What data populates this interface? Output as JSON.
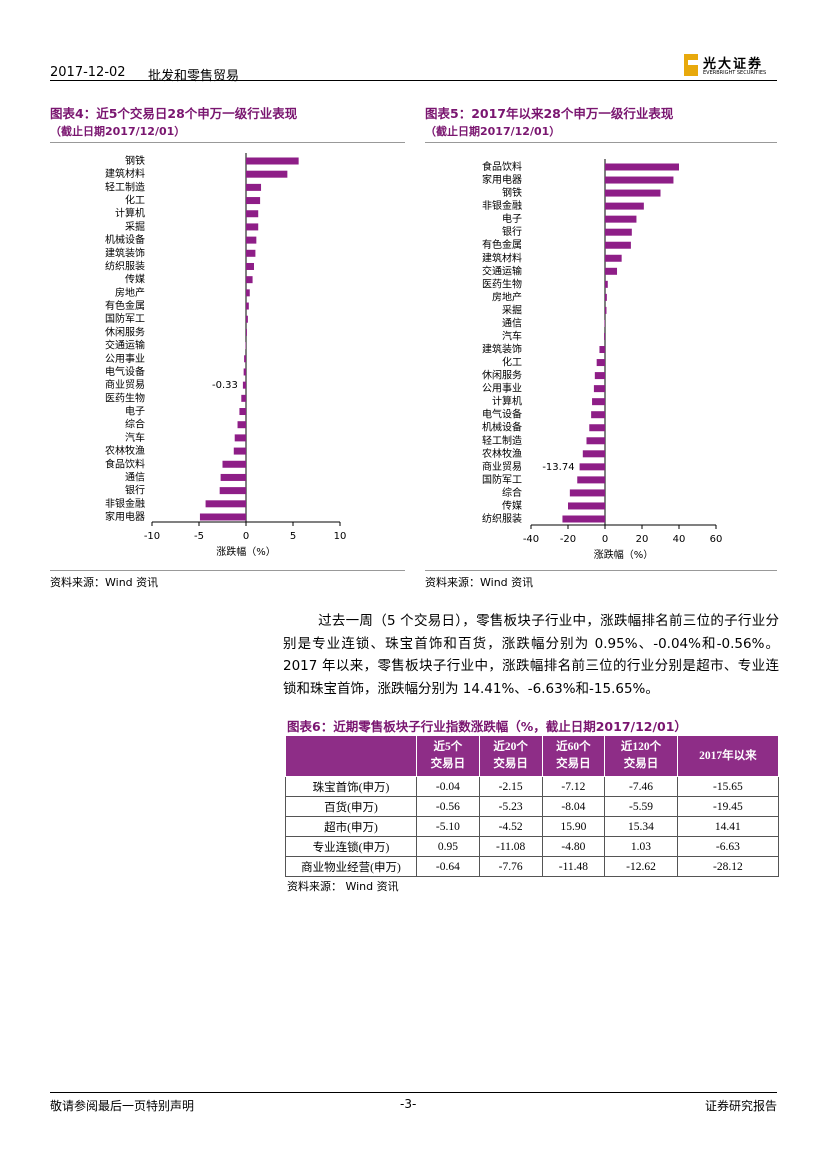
{
  "header": {
    "date": "2017-12-02",
    "section": "批发和零售贸易",
    "logo_name": "光大证券",
    "logo_en": "EVERBRIGHT SECURITIES"
  },
  "chart_data": [
    {
      "type": "bar",
      "orientation": "horizontal",
      "title": "图表4：近5个交易日28个申万一级行业表现",
      "subtitle": "（截止日期2017/12/01）",
      "xlabel": "涨跌幅（%）",
      "source": "资料来源：Wind 资讯",
      "color": "#8e1e87",
      "categories": [
        "钢铁",
        "建筑材料",
        "轻工制造",
        "化工",
        "计算机",
        "采掘",
        "机械设备",
        "建筑装饰",
        "纺织服装",
        "传媒",
        "房地产",
        "有色金属",
        "国防军工",
        "休闲服务",
        "交通运输",
        "公用事业",
        "电气设备",
        "商业贸易",
        "医药生物",
        "电子",
        "综合",
        "汽车",
        "农林牧渔",
        "食品饮料",
        "通信",
        "银行",
        "非银金融",
        "家用电器"
      ],
      "values": [
        5.6,
        4.4,
        1.6,
        1.5,
        1.3,
        1.3,
        1.1,
        1.0,
        0.85,
        0.7,
        0.4,
        0.3,
        0.2,
        0.1,
        -0.05,
        -0.2,
        -0.25,
        -0.33,
        -0.5,
        -0.7,
        -0.9,
        -1.2,
        -1.3,
        -2.5,
        -2.7,
        -2.8,
        -4.3,
        -4.9
      ],
      "value_labels": [
        null,
        null,
        null,
        null,
        null,
        null,
        null,
        null,
        null,
        null,
        null,
        null,
        null,
        null,
        null,
        null,
        null,
        "-0.33",
        null,
        null,
        null,
        null,
        null,
        null,
        null,
        null,
        null,
        null
      ],
      "xlim": [
        -10,
        10
      ],
      "xticks": [
        -10,
        -5,
        0,
        5,
        10
      ],
      "grid": false
    },
    {
      "type": "bar",
      "orientation": "horizontal",
      "title": "图表5：2017年以来28个申万一级行业表现",
      "subtitle": "（截止日期2017/12/01）",
      "xlabel": "涨跌幅（%）",
      "source": "资料来源：Wind 资讯",
      "color": "#8e1e87",
      "categories": [
        "食品饮料",
        "家用电器",
        "钢铁",
        "非银金融",
        "电子",
        "银行",
        "有色金属",
        "建筑材料",
        "交通运输",
        "医药生物",
        "房地产",
        "采掘",
        "通信",
        "汽车",
        "建筑装饰",
        "化工",
        "休闲服务",
        "公用事业",
        "计算机",
        "电气设备",
        "机械设备",
        "轻工制造",
        "农林牧渔",
        "商业贸易",
        "国防军工",
        "综合",
        "传媒",
        "纺织服装"
      ],
      "values": [
        40,
        37,
        30,
        21,
        17,
        14.5,
        14,
        9,
        6.5,
        1.5,
        1,
        0.8,
        -0.3,
        -0.5,
        -3,
        -4.5,
        -5.5,
        -6,
        -7,
        -7.5,
        -8.5,
        -10,
        -12,
        -13.74,
        -15,
        -19,
        -20,
        -23
      ],
      "value_labels": [
        null,
        null,
        null,
        null,
        null,
        null,
        null,
        null,
        null,
        null,
        null,
        null,
        null,
        null,
        null,
        null,
        null,
        null,
        null,
        null,
        null,
        null,
        null,
        "-13.74",
        null,
        null,
        null,
        null
      ],
      "xlim": [
        -40,
        60
      ],
      "xticks": [
        -40,
        -20,
        0,
        20,
        40,
        60
      ],
      "grid": false
    }
  ],
  "paragraph": "过去一周（5 个交易日），零售板块子行业中，涨跌幅排名前三位的子行业分别是专业连锁、珠宝首饰和百货，涨跌幅分别为 0.95%、-0.04%和-0.56%。2017 年以来，零售板块子行业中，涨跌幅排名前三位的行业分别是超市、专业连锁和珠宝首饰，涨跌幅分别为 14.41%、-6.63%和-15.65%。",
  "table": {
    "title": "图表6：近期零售板块子行业指数涨跌幅（%，截止日期2017/12/01）",
    "columns": [
      [
        "近5个",
        "交易日"
      ],
      [
        "近20个",
        "交易日"
      ],
      [
        "近60个",
        "交易日"
      ],
      [
        "近120个",
        "交易日"
      ],
      [
        "2017年以来"
      ]
    ],
    "rows": [
      [
        "珠宝首饰(申万)",
        "-0.04",
        "-2.15",
        "-7.12",
        "-7.46",
        "-15.65"
      ],
      [
        "百货(申万)",
        "-0.56",
        "-5.23",
        "-8.04",
        "-5.59",
        "-19.45"
      ],
      [
        "超市(申万)",
        "-5.10",
        "-4.52",
        "15.90",
        "15.34",
        "14.41"
      ],
      [
        "专业连锁(申万)",
        "0.95",
        "-11.08",
        "-4.80",
        "1.03",
        "-6.63"
      ],
      [
        "商业物业经营(申万)",
        "-0.64",
        "-7.76",
        "-11.48",
        "-12.62",
        "-28.12"
      ]
    ],
    "source": "资料来源：  Wind 资讯"
  },
  "footer": {
    "left": "敬请参阅最后一页特别声明",
    "center": "-3-",
    "right": "证券研究报告"
  }
}
